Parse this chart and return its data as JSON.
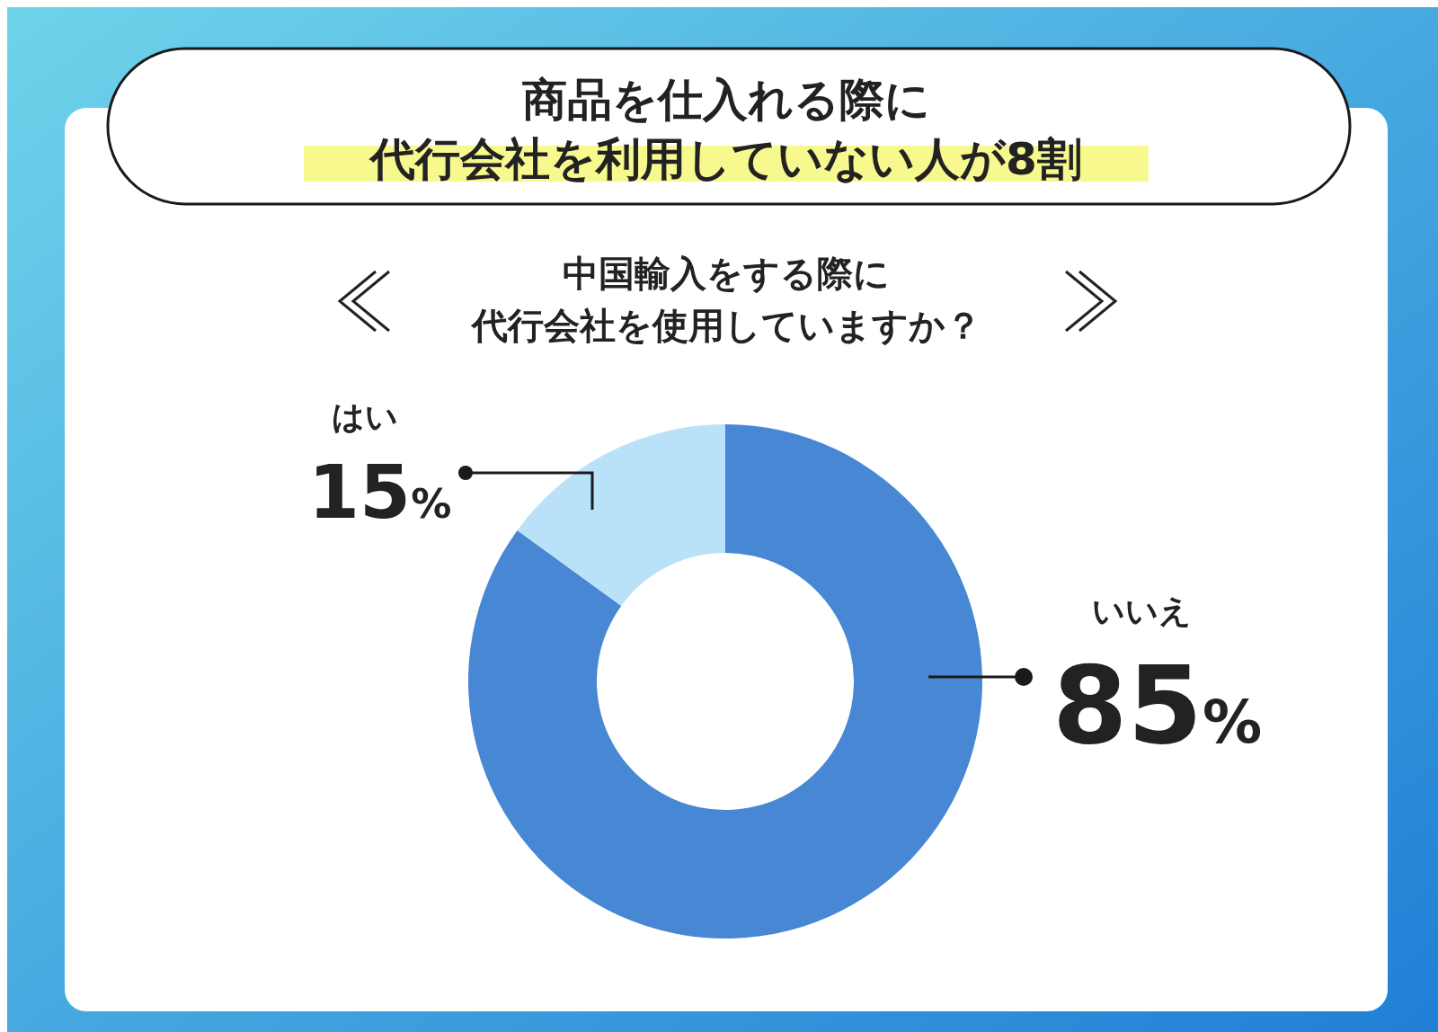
{
  "chart_data": {
    "type": "donut",
    "title": "商品を仕入れる際に代行会社を利用していない人が8割",
    "subtitle": "中国輸入をする際に代行会社を使用していますか？",
    "categories": [
      "いいえ",
      "はい"
    ],
    "values": [
      85,
      15
    ],
    "colors": [
      "#4887d4",
      "#b9e2f8"
    ],
    "value_labels": [
      "85%",
      "15%"
    ]
  }
}
